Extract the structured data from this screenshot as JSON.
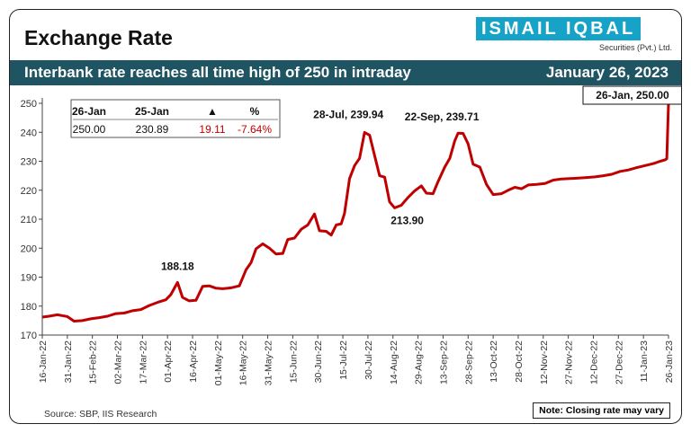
{
  "header": {
    "title": "Exchange Rate",
    "logo_name": "ISMAIL IQBAL",
    "logo_sub": "Securities (Pvt.) Ltd.",
    "banner_text": "Interbank rate reaches all time high of 250 in intraday",
    "banner_date": "January 26, 2023"
  },
  "summary_table": {
    "headers": [
      "26-Jan",
      "25-Jan",
      "▲",
      "%"
    ],
    "values": [
      "250.00",
      "230.89",
      "19.11",
      "-7.64%"
    ]
  },
  "footer": {
    "source": "Source: SBP, IIS Research",
    "note": "Note: Closing  rate may vary"
  },
  "colors": {
    "line": "#c00000",
    "banner": "#1f5462",
    "logo": "#17a2c8",
    "positive": "#c00000"
  },
  "chart_data": {
    "type": "line",
    "title": "Exchange Rate",
    "xlabel": "",
    "ylabel": "",
    "ylim": [
      170,
      250
    ],
    "yticks": [
      170,
      180,
      190,
      200,
      210,
      220,
      230,
      240,
      250
    ],
    "xticks": [
      "16-Jan-22",
      "31-Jan-22",
      "15-Feb-22",
      "02-Mar-22",
      "17-Mar-22",
      "01-Apr-22",
      "16-Apr-22",
      "01-May-22",
      "16-May-22",
      "31-May-22",
      "15-Jun-22",
      "30-Jun-22",
      "15-Jul-22",
      "30-Jul-22",
      "14-Aug-22",
      "29-Aug-22",
      "13-Sep-22",
      "28-Sep-22",
      "13-Oct-22",
      "28-Oct-22",
      "12-Nov-22",
      "27-Nov-22",
      "12-Dec-22",
      "27-Dec-22",
      "11-Jan-23",
      "26-Jan-23"
    ],
    "grid": false,
    "series": [
      {
        "values": [
          [
            "2022-01-16",
            176.2
          ],
          [
            "2022-01-20",
            176.5
          ],
          [
            "2022-01-25",
            177.0
          ],
          [
            "2022-01-29",
            176.6
          ],
          [
            "2022-01-31",
            176.4
          ],
          [
            "2022-02-04",
            174.8
          ],
          [
            "2022-02-09",
            175.0
          ],
          [
            "2022-02-14",
            175.6
          ],
          [
            "2022-02-19",
            176.0
          ],
          [
            "2022-02-24",
            176.5
          ],
          [
            "2022-03-01",
            177.4
          ],
          [
            "2022-03-06",
            177.6
          ],
          [
            "2022-03-11",
            178.4
          ],
          [
            "2022-03-16",
            178.8
          ],
          [
            "2022-03-21",
            180.2
          ],
          [
            "2022-03-26",
            181.3
          ],
          [
            "2022-03-31",
            182.2
          ],
          [
            "2022-04-03",
            184.0
          ],
          [
            "2022-04-07",
            188.18
          ],
          [
            "2022-04-10",
            183.0
          ],
          [
            "2022-04-14",
            181.8
          ],
          [
            "2022-04-18",
            182.0
          ],
          [
            "2022-04-22",
            186.8
          ],
          [
            "2022-04-26",
            187.0
          ],
          [
            "2022-04-30",
            186.2
          ],
          [
            "2022-05-04",
            186.0
          ],
          [
            "2022-05-09",
            186.3
          ],
          [
            "2022-05-14",
            187.0
          ],
          [
            "2022-05-18",
            192.5
          ],
          [
            "2022-05-21",
            195.0
          ],
          [
            "2022-05-24",
            199.8
          ],
          [
            "2022-05-28",
            201.5
          ],
          [
            "2022-06-01",
            200.0
          ],
          [
            "2022-06-05",
            198.0
          ],
          [
            "2022-06-09",
            198.2
          ],
          [
            "2022-06-12",
            203.0
          ],
          [
            "2022-06-16",
            203.5
          ],
          [
            "2022-06-20",
            206.5
          ],
          [
            "2022-06-24",
            208.0
          ],
          [
            "2022-06-28",
            211.8
          ],
          [
            "2022-07-01",
            206.0
          ],
          [
            "2022-07-05",
            205.8
          ],
          [
            "2022-07-08",
            204.5
          ],
          [
            "2022-07-11",
            208.0
          ],
          [
            "2022-07-14",
            208.4
          ],
          [
            "2022-07-16",
            212.0
          ],
          [
            "2022-07-19",
            224.0
          ],
          [
            "2022-07-22",
            228.5
          ],
          [
            "2022-07-25",
            231.0
          ],
          [
            "2022-07-28",
            239.94
          ],
          [
            "2022-07-31",
            239.0
          ],
          [
            "2022-08-03",
            232.0
          ],
          [
            "2022-08-06",
            225.0
          ],
          [
            "2022-08-09",
            224.5
          ],
          [
            "2022-08-12",
            216.0
          ],
          [
            "2022-08-15",
            213.9
          ],
          [
            "2022-08-19",
            214.8
          ],
          [
            "2022-08-23",
            217.5
          ],
          [
            "2022-08-27",
            219.8
          ],
          [
            "2022-08-31",
            221.5
          ],
          [
            "2022-09-03",
            219.0
          ],
          [
            "2022-09-07",
            218.8
          ],
          [
            "2022-09-10",
            223.0
          ],
          [
            "2022-09-14",
            228.0
          ],
          [
            "2022-09-17",
            231.0
          ],
          [
            "2022-09-20",
            237.0
          ],
          [
            "2022-09-22",
            239.71
          ],
          [
            "2022-09-25",
            239.6
          ],
          [
            "2022-09-28",
            236.0
          ],
          [
            "2022-10-01",
            229.0
          ],
          [
            "2022-10-05",
            228.0
          ],
          [
            "2022-10-09",
            222.0
          ],
          [
            "2022-10-13",
            218.5
          ],
          [
            "2022-10-18",
            218.8
          ],
          [
            "2022-10-22",
            220.0
          ],
          [
            "2022-10-26",
            221.0
          ],
          [
            "2022-10-30",
            220.5
          ],
          [
            "2022-11-03",
            221.8
          ],
          [
            "2022-11-08",
            222.0
          ],
          [
            "2022-11-13",
            222.3
          ],
          [
            "2022-11-18",
            223.5
          ],
          [
            "2022-11-23",
            223.9
          ],
          [
            "2022-11-28",
            224.0
          ],
          [
            "2022-12-03",
            224.2
          ],
          [
            "2022-12-08",
            224.4
          ],
          [
            "2022-12-13",
            224.6
          ],
          [
            "2022-12-18",
            225.0
          ],
          [
            "2022-12-23",
            225.5
          ],
          [
            "2022-12-28",
            226.5
          ],
          [
            "2023-01-02",
            227.0
          ],
          [
            "2023-01-07",
            227.8
          ],
          [
            "2023-01-12",
            228.5
          ],
          [
            "2023-01-17",
            229.2
          ],
          [
            "2023-01-21",
            230.0
          ],
          [
            "2023-01-24",
            230.5
          ],
          [
            "2023-01-25",
            230.89
          ],
          [
            "2023-01-26",
            250.0
          ]
        ]
      }
    ],
    "annotations": [
      {
        "label": "188.18",
        "x": "2022-04-07",
        "y": 188.18,
        "boxed": false
      },
      {
        "label": "28-Jul, 239.94",
        "x": "2022-07-28",
        "y": 239.94,
        "boxed": false
      },
      {
        "label": "213.90",
        "x": "2022-08-15",
        "y": 213.9,
        "boxed": false
      },
      {
        "label": "22-Sep, 239.71",
        "x": "2022-09-22",
        "y": 239.71,
        "boxed": false
      },
      {
        "label": "26-Jan, 250.00",
        "x": "2023-01-26",
        "y": 250.0,
        "boxed": true
      }
    ]
  }
}
